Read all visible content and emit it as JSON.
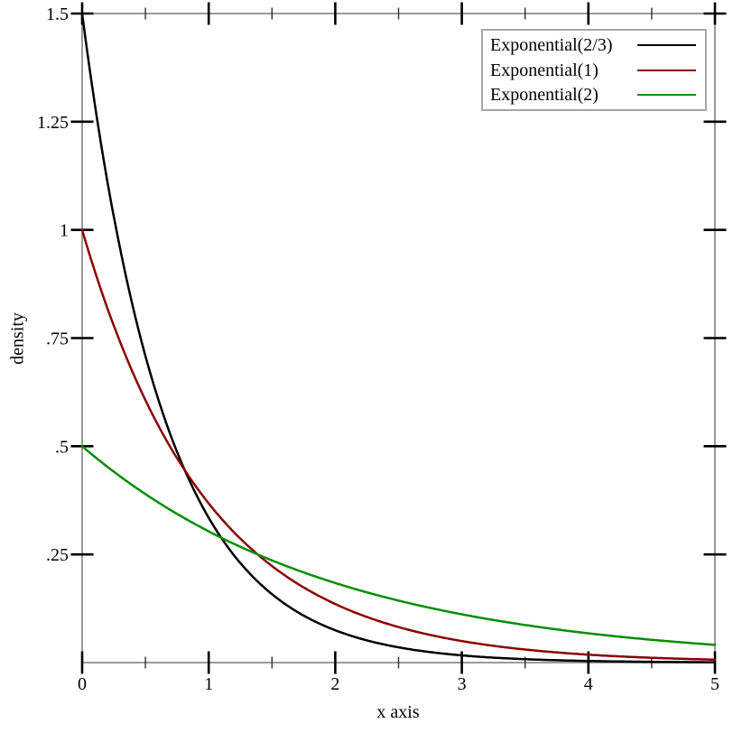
{
  "figure": {
    "background": "#ffffff",
    "frame_color": "#9a9a9a",
    "major_tick_color": "#000000",
    "minor_tick_color": "#2e2e2e",
    "text_color": "#000000",
    "legend_border_color": "#a6a6a6"
  },
  "chart_data": {
    "type": "line",
    "title": "",
    "xlabel": "x axis",
    "ylabel": "density",
    "xlim": [
      0,
      5
    ],
    "ylim": [
      0,
      1.5
    ],
    "grid": false,
    "legend_position": "top-right-inside",
    "x_major_ticks": [
      {
        "v": 0,
        "label": "0"
      },
      {
        "v": 1,
        "label": "1"
      },
      {
        "v": 2,
        "label": "2"
      },
      {
        "v": 3,
        "label": "3"
      },
      {
        "v": 4,
        "label": "4"
      },
      {
        "v": 5,
        "label": "5"
      }
    ],
    "x_minor_ticks": [
      0.5,
      1.5,
      2.5,
      3.5,
      4.5
    ],
    "y_major_ticks": [
      {
        "v": 0.25,
        "label": ".25"
      },
      {
        "v": 0.5,
        "label": ".5"
      },
      {
        "v": 0.75,
        "label": ".75"
      },
      {
        "v": 1,
        "label": "1"
      },
      {
        "v": 1.25,
        "label": "1.25"
      },
      {
        "v": 1.5,
        "label": "1.5"
      }
    ],
    "series": [
      {
        "name": "Exponential(2/3)",
        "color": "#000000",
        "distribution": "exponential pdf",
        "rate": 1.5,
        "x": [
          0,
          0.5,
          1,
          1.5,
          2,
          2.5,
          3,
          3.5,
          4,
          4.5,
          5
        ],
        "y": [
          1.5,
          0.7085,
          0.3347,
          0.1581,
          0.0747,
          0.0353,
          0.0167,
          0.0079,
          0.0037,
          0.0018,
          0.0008
        ]
      },
      {
        "name": "Exponential(1)",
        "color": "#8b0000",
        "distribution": "exponential pdf",
        "rate": 1,
        "x": [
          0,
          0.5,
          1,
          1.5,
          2,
          2.5,
          3,
          3.5,
          4,
          4.5,
          5
        ],
        "y": [
          1,
          0.6065,
          0.3679,
          0.2231,
          0.1353,
          0.0821,
          0.0498,
          0.0302,
          0.0183,
          0.0111,
          0.0067
        ]
      },
      {
        "name": "Exponential(2)",
        "color": "#008e00",
        "distribution": "exponential pdf",
        "rate": 0.5,
        "x": [
          0,
          0.5,
          1,
          1.5,
          2,
          2.5,
          3,
          3.5,
          4,
          4.5,
          5
        ],
        "y": [
          0.5,
          0.3894,
          0.3033,
          0.2362,
          0.1839,
          0.1433,
          0.1116,
          0.0869,
          0.0677,
          0.0527,
          0.041
        ]
      }
    ]
  }
}
